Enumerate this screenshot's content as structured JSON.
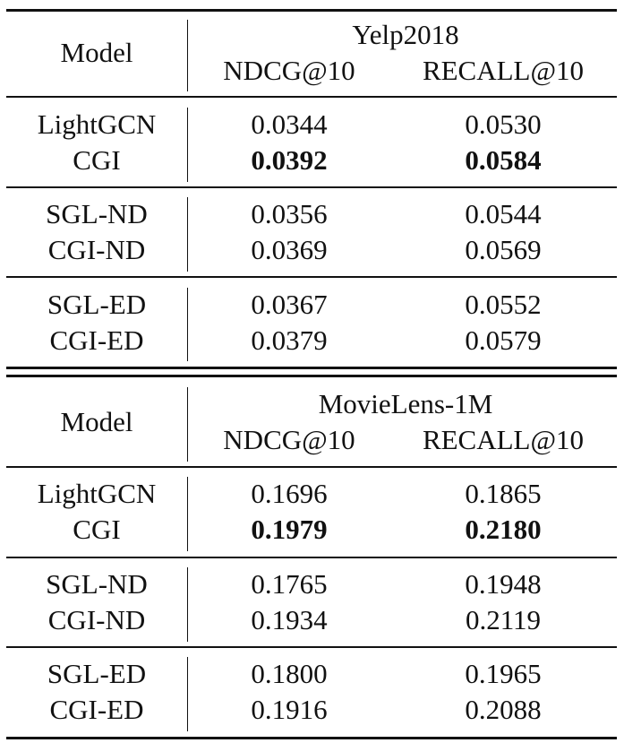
{
  "tables": [
    {
      "dataset": "Yelp2018",
      "model_header": "Model",
      "metric_headers": [
        "NDCG@10",
        "RECALL@10"
      ],
      "groups": [
        {
          "rows": [
            {
              "model": "LightGCN",
              "ndcg": "0.0344",
              "recall": "0.0530",
              "bold": false
            },
            {
              "model": "CGI",
              "ndcg": "0.0392",
              "recall": "0.0584",
              "bold": true
            }
          ]
        },
        {
          "rows": [
            {
              "model": "SGL-ND",
              "ndcg": "0.0356",
              "recall": "0.0544",
              "bold": false
            },
            {
              "model": "CGI-ND",
              "ndcg": "0.0369",
              "recall": "0.0569",
              "bold": false
            }
          ]
        },
        {
          "rows": [
            {
              "model": "SGL-ED",
              "ndcg": "0.0367",
              "recall": "0.0552",
              "bold": false
            },
            {
              "model": "CGI-ED",
              "ndcg": "0.0379",
              "recall": "0.0579",
              "bold": false
            }
          ]
        }
      ]
    },
    {
      "dataset": "MovieLens-1M",
      "model_header": "Model",
      "metric_headers": [
        "NDCG@10",
        "RECALL@10"
      ],
      "groups": [
        {
          "rows": [
            {
              "model": "LightGCN",
              "ndcg": "0.1696",
              "recall": "0.1865",
              "bold": false
            },
            {
              "model": "CGI",
              "ndcg": "0.1979",
              "recall": "0.2180",
              "bold": true
            }
          ]
        },
        {
          "rows": [
            {
              "model": "SGL-ND",
              "ndcg": "0.1765",
              "recall": "0.1948",
              "bold": false
            },
            {
              "model": "CGI-ND",
              "ndcg": "0.1934",
              "recall": "0.2119",
              "bold": false
            }
          ]
        },
        {
          "rows": [
            {
              "model": "SGL-ED",
              "ndcg": "0.1800",
              "recall": "0.1965",
              "bold": false
            },
            {
              "model": "CGI-ED",
              "ndcg": "0.1916",
              "recall": "0.2088",
              "bold": false
            }
          ]
        }
      ]
    }
  ]
}
